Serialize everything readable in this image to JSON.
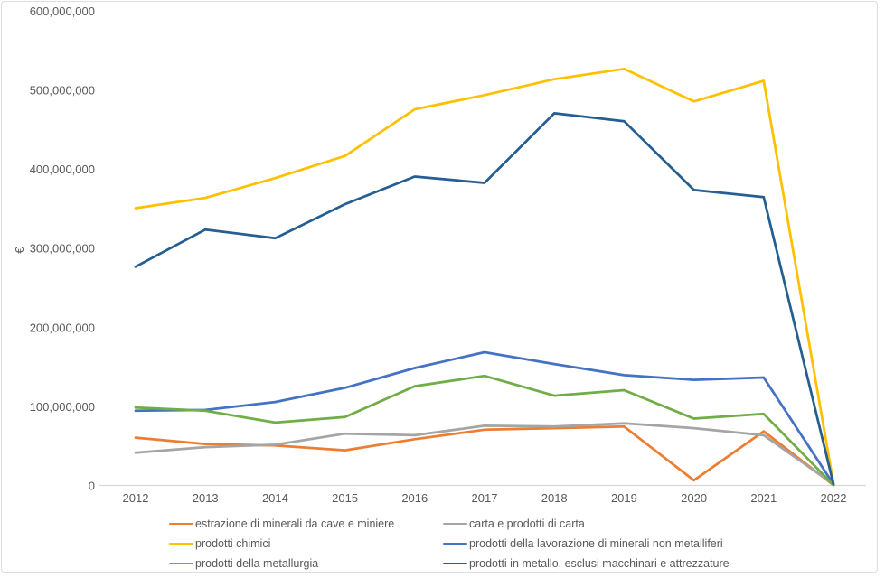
{
  "chart_data": {
    "type": "line",
    "title": "",
    "xlabel": "",
    "ylabel": "€",
    "categories": [
      "2012",
      "2013",
      "2014",
      "2015",
      "2016",
      "2017",
      "2018",
      "2019",
      "2020",
      "2021",
      "2022"
    ],
    "y_ticks": [
      "0",
      "100,000,000",
      "200,000,000",
      "300,000,000",
      "400,000,000",
      "500,000,000",
      "600,000,000"
    ],
    "ylim": [
      0,
      600000000
    ],
    "grid": false,
    "legend_position": "bottom",
    "axis_color": "#d9d9d9",
    "text_color": "#595959",
    "series": [
      {
        "name": "estrazione di minerali da cave e miniere",
        "color": "#ED7D31",
        "values": [
          61000000,
          53000000,
          51000000,
          45000000,
          59000000,
          71000000,
          73000000,
          75000000,
          7000000,
          69000000,
          1000000
        ]
      },
      {
        "name": "carta e prodotti di carta",
        "color": "#A5A5A5",
        "values": [
          42000000,
          49000000,
          52000000,
          66000000,
          64000000,
          76000000,
          75000000,
          79000000,
          73000000,
          64000000,
          2000000
        ]
      },
      {
        "name": "prodotti chimici",
        "color": "#FFC000",
        "values": [
          351000000,
          364000000,
          389000000,
          417000000,
          476000000,
          494000000,
          514000000,
          527000000,
          486000000,
          512000000,
          3000000
        ]
      },
      {
        "name": "prodotti della lavorazione di minerali non metalliferi",
        "color": "#4472C4",
        "values": [
          95000000,
          96000000,
          106000000,
          124000000,
          149000000,
          169000000,
          154000000,
          140000000,
          134000000,
          137000000,
          2000000
        ]
      },
      {
        "name": "prodotti della metallurgia",
        "color": "#70AD47",
        "values": [
          99000000,
          95000000,
          80000000,
          87000000,
          126000000,
          139000000,
          114000000,
          121000000,
          85000000,
          91000000,
          1000000
        ]
      },
      {
        "name": "prodotti in metallo, esclusi macchinari e attrezzature",
        "color": "#255E91",
        "values": [
          277000000,
          324000000,
          313000000,
          356000000,
          391000000,
          383000000,
          471000000,
          461000000,
          374000000,
          365000000,
          2000000
        ]
      }
    ]
  }
}
